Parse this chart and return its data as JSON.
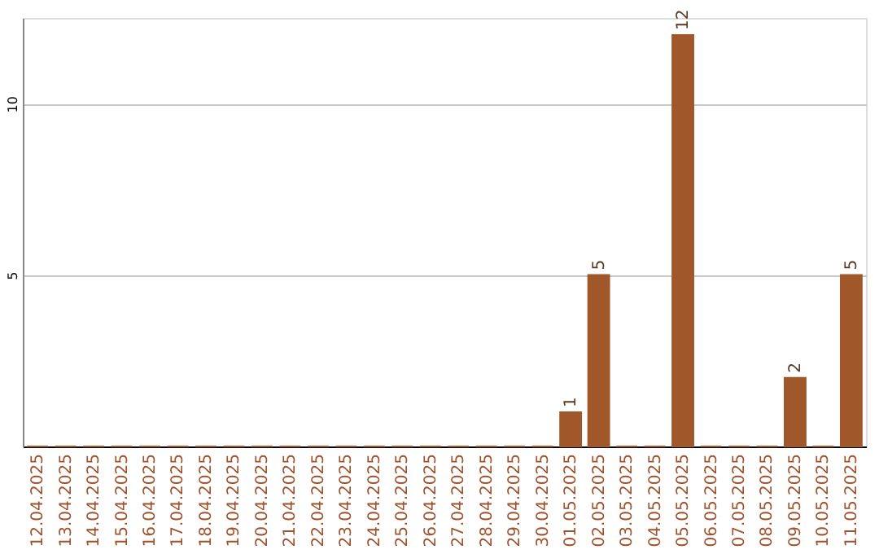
{
  "chart_data": {
    "type": "bar",
    "categories": [
      "12.04.2025",
      "13.04.2025",
      "14.04.2025",
      "15.04.2025",
      "16.04.2025",
      "17.04.2025",
      "18.04.2025",
      "19.04.2025",
      "20.04.2025",
      "21.04.2025",
      "22.04.2025",
      "23.04.2025",
      "24.04.2025",
      "25.04.2025",
      "26.04.2025",
      "27.04.2025",
      "28.04.2025",
      "29.04.2025",
      "30.04.2025",
      "01.05.2025",
      "02.05.2025",
      "03.05.2025",
      "04.05.2025",
      "05.05.2025",
      "06.05.2025",
      "07.05.2025",
      "08.05.2025",
      "09.05.2025",
      "10.05.2025",
      "11.05.2025"
    ],
    "values": [
      0,
      0,
      0,
      0,
      0,
      0,
      0,
      0,
      0,
      0,
      0,
      0,
      0,
      0,
      0,
      0,
      0,
      0,
      0,
      1,
      5,
      0,
      0,
      12,
      0,
      0,
      0,
      2,
      0,
      5
    ],
    "value_labels": [
      null,
      null,
      null,
      null,
      null,
      null,
      null,
      null,
      null,
      null,
      null,
      null,
      null,
      null,
      null,
      null,
      null,
      null,
      null,
      "1",
      "5",
      null,
      null,
      "12",
      null,
      null,
      null,
      "2",
      null,
      "5"
    ],
    "color": "#a0582a",
    "ylim": [
      0,
      12.5
    ],
    "yticks": [
      5,
      10
    ],
    "grid": "y"
  }
}
